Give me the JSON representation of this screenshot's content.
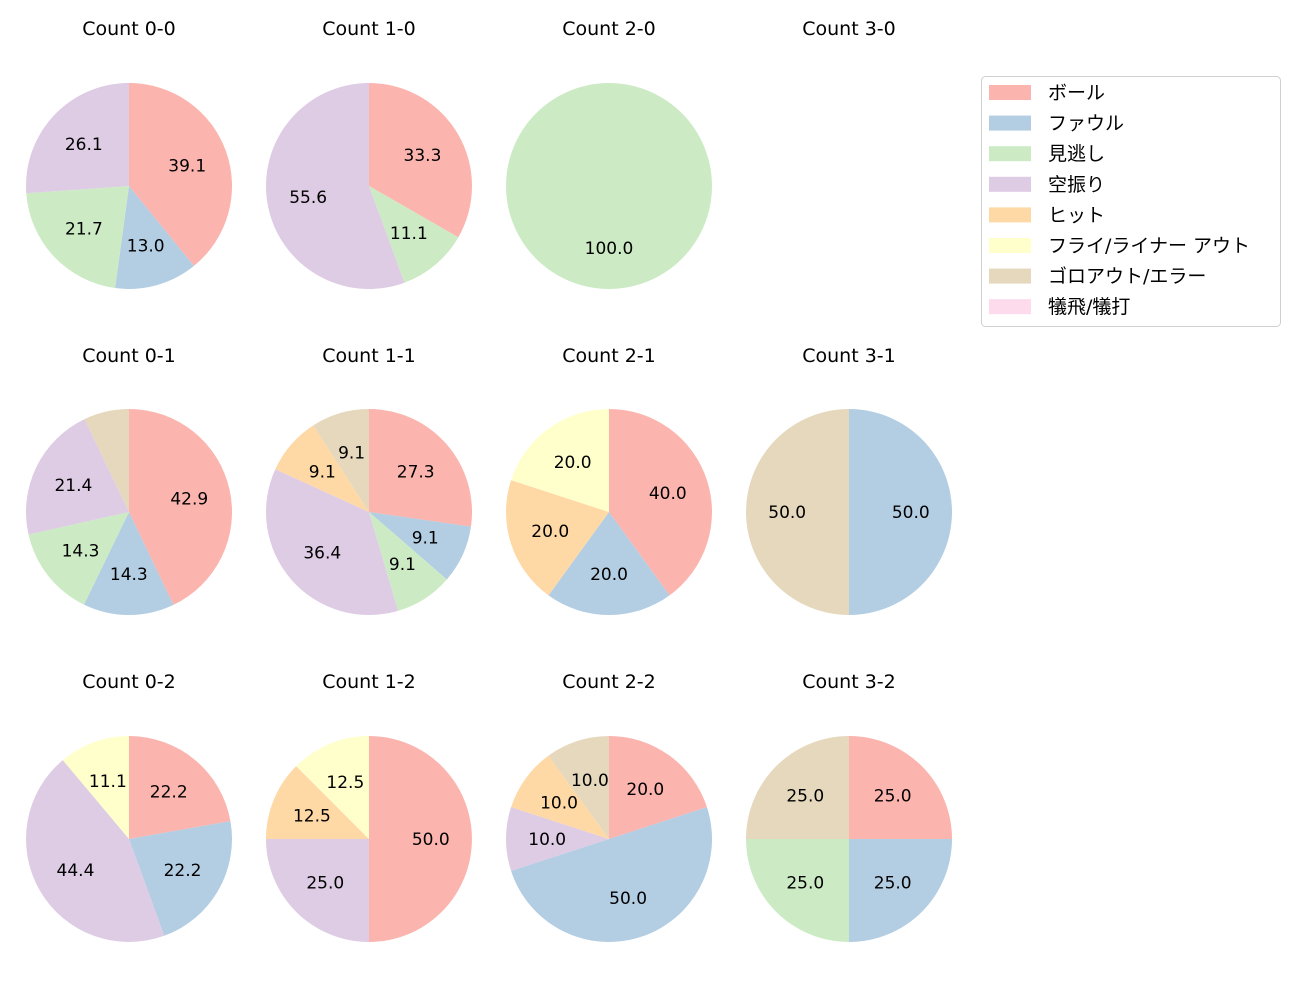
{
  "chart_data": {
    "type": "pie",
    "categories": [
      "ボール",
      "ファウル",
      "見逃し",
      "空振り",
      "ヒット",
      "フライ/ライナー アウト",
      "ゴロアウト/エラー",
      "犠飛/犠打"
    ],
    "colors": [
      "#fbb4ae",
      "#b3cde3",
      "#ccebc5",
      "#decbe4",
      "#fed9a6",
      "#ffffcc",
      "#e5d8bd",
      "#fddaec"
    ],
    "start_angle": 90,
    "direction": "clockwise",
    "legend": {
      "position": "right"
    },
    "charts": [
      {
        "title": "Count 0-0",
        "values": [
          39.1,
          13.0,
          21.7,
          26.1,
          0,
          0,
          0,
          0
        ]
      },
      {
        "title": "Count 1-0",
        "values": [
          33.3,
          0,
          11.1,
          55.6,
          0,
          0,
          0,
          0
        ]
      },
      {
        "title": "Count 2-0",
        "values": [
          0,
          0,
          100.0,
          0,
          0,
          0,
          0,
          0
        ]
      },
      {
        "title": "Count 3-0",
        "values": [
          0,
          0,
          0,
          0,
          0,
          0,
          0,
          0
        ]
      },
      {
        "title": "Count 0-1",
        "values": [
          42.9,
          14.3,
          14.3,
          21.4,
          0,
          0,
          7.1,
          0
        ]
      },
      {
        "title": "Count 1-1",
        "values": [
          27.3,
          9.1,
          9.1,
          36.4,
          9.1,
          0,
          9.1,
          0
        ]
      },
      {
        "title": "Count 2-1",
        "values": [
          40.0,
          20.0,
          0,
          0,
          20.0,
          20.0,
          0,
          0
        ]
      },
      {
        "title": "Count 3-1",
        "values": [
          0,
          50.0,
          0,
          0,
          0,
          0,
          50.0,
          0
        ]
      },
      {
        "title": "Count 0-2",
        "values": [
          22.2,
          22.2,
          0,
          44.4,
          0,
          11.1,
          0,
          0
        ]
      },
      {
        "title": "Count 1-2",
        "values": [
          50.0,
          0,
          0,
          25.0,
          12.5,
          12.5,
          0,
          0
        ]
      },
      {
        "title": "Count 2-2",
        "values": [
          20.0,
          50.0,
          0,
          10.0,
          10.0,
          0,
          10.0,
          0
        ]
      },
      {
        "title": "Count 3-2",
        "values": [
          25.0,
          25.0,
          25.0,
          0,
          0,
          0,
          25.0,
          0
        ]
      }
    ]
  }
}
